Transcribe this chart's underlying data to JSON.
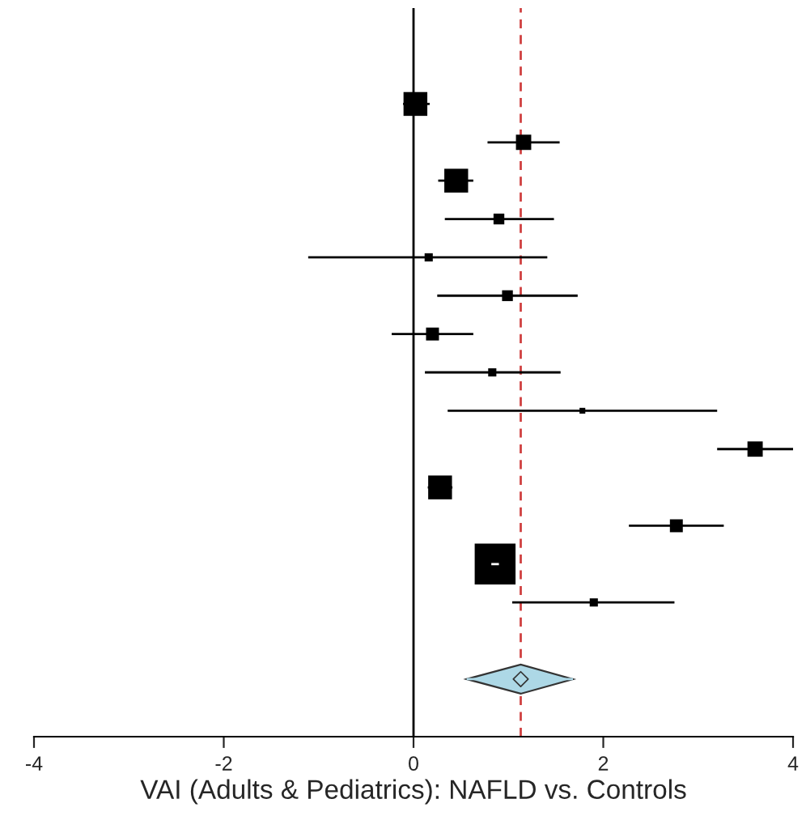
{
  "chart_data": {
    "type": "scatter",
    "orientation": "horizontal",
    "xlabel": "VAI (Adults & Pediatrics): NAFLD vs. Controls",
    "categories": [
      null,
      null,
      null,
      null,
      null,
      null,
      null,
      null,
      null,
      null,
      null,
      null,
      null,
      null,
      null,
      null,
      null,
      null,
      null
    ],
    "series": [
      {
        "color": "#000000",
        "marker": "square",
        "values": [
          null,
          null,
          0.02,
          1.16,
          0.45,
          0.9,
          0.16,
          0.99,
          0.2,
          0.83,
          1.78,
          3.6,
          0.28,
          2.77,
          0.86,
          1.9,
          null,
          null,
          null
        ],
        "errors": [
          null,
          null,
          [
            -0.11,
            0.17
          ],
          [
            0.78,
            1.54
          ],
          [
            0.26,
            0.63
          ],
          [
            0.33,
            1.48
          ],
          [
            -1.11,
            1.41
          ],
          [
            0.25,
            1.73
          ],
          [
            -0.23,
            0.63
          ],
          [
            0.12,
            1.55
          ],
          [
            0.36,
            3.2
          ],
          [
            3.2,
            4.0
          ],
          [
            0.15,
            0.41
          ],
          [
            2.27,
            3.27
          ],
          [
            0.82,
            0.9
          ],
          [
            1.04,
            2.75
          ],
          null,
          null,
          null
        ],
        "sizes": [
          null,
          null,
          0.34,
          0.14,
          0.34,
          0.07,
          0.04,
          0.07,
          0.1,
          0.04,
          0.02,
          0.14,
          0.34,
          0.1,
          1,
          0.04,
          null,
          null,
          null
        ]
      },
      {
        "color": "#add8e6",
        "marker": "diamond",
        "values": [
          null,
          null,
          null,
          null,
          null,
          null,
          null,
          null,
          null,
          null,
          null,
          null,
          null,
          null,
          null,
          null,
          null,
          1.13,
          null
        ],
        "errors": [
          null,
          null,
          null,
          null,
          null,
          null,
          null,
          null,
          null,
          null,
          null,
          null,
          null,
          null,
          null,
          null,
          null,
          [
            0.56,
            1.68
          ],
          null
        ]
      }
    ],
    "xlim": [
      -4,
      4
    ],
    "xticks": [
      -4,
      -2,
      0,
      2,
      4
    ],
    "ref_lines": [
      {
        "axis": "x",
        "value": 0,
        "color": "#000000",
        "line_style": "solid"
      },
      {
        "axis": "x",
        "value": 1.13,
        "color": "#d04040",
        "line_style": "dashed"
      }
    ],
    "tick_labels": "x",
    "grid": false,
    "legend": false
  }
}
